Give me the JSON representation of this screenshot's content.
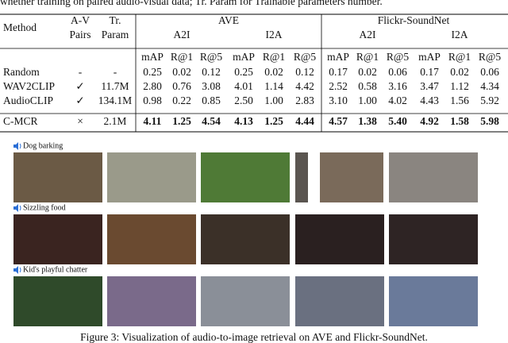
{
  "caption_top": "whether training on paired audio-visual data; Tr. Param for Trainable parameters number.",
  "table": {
    "header": {
      "method": "Method",
      "av_pairs": [
        "A-V",
        "Pairs"
      ],
      "tr_param": [
        "Tr.",
        "Param"
      ],
      "groups": [
        {
          "name": "AVE",
          "sub": [
            "A2I",
            "I2A"
          ]
        },
        {
          "name": "Flickr-SoundNet",
          "sub": [
            "A2I",
            "I2A"
          ]
        }
      ],
      "metrics": [
        "mAP",
        "R@1",
        "R@5",
        "mAP",
        "R@1",
        "R@5",
        "mAP",
        "R@1",
        "R@5",
        "mAP",
        "R@1",
        "R@5"
      ]
    },
    "rows": [
      {
        "method": "Random",
        "av": "-",
        "param": "-",
        "values": [
          "0.25",
          "0.02",
          "0.12",
          "0.25",
          "0.02",
          "0.12",
          "0.17",
          "0.02",
          "0.06",
          "0.17",
          "0.02",
          "0.06"
        ],
        "bold": false
      },
      {
        "method": "WAV2CLIP",
        "av": "✓",
        "param": "11.7M",
        "values": [
          "2.80",
          "0.76",
          "3.08",
          "4.01",
          "1.14",
          "4.42",
          "2.52",
          "0.58",
          "3.16",
          "3.47",
          "1.12",
          "4.34"
        ],
        "bold": false
      },
      {
        "method": "AudioCLIP",
        "av": "✓",
        "param": "134.1M",
        "values": [
          "0.98",
          "0.22",
          "0.85",
          "2.50",
          "1.00",
          "2.83",
          "3.10",
          "1.00",
          "4.02",
          "4.43",
          "1.56",
          "5.92"
        ],
        "bold": false
      },
      {
        "method": "C-MCR",
        "av": "×",
        "param": "2.1M",
        "values": [
          "4.11",
          "1.25",
          "4.54",
          "4.13",
          "1.25",
          "4.44",
          "4.57",
          "1.38",
          "5.40",
          "4.92",
          "1.58",
          "5.98"
        ],
        "bold": true
      }
    ]
  },
  "figure": {
    "rows": [
      {
        "label": "Dog barking"
      },
      {
        "label": "Sizzling food"
      },
      {
        "label": "Kid's playful chatter"
      }
    ]
  },
  "caption_bottom": "Figure 3: Visualization of audio-to-image retrieval on AVE and Flickr-SoundNet."
}
